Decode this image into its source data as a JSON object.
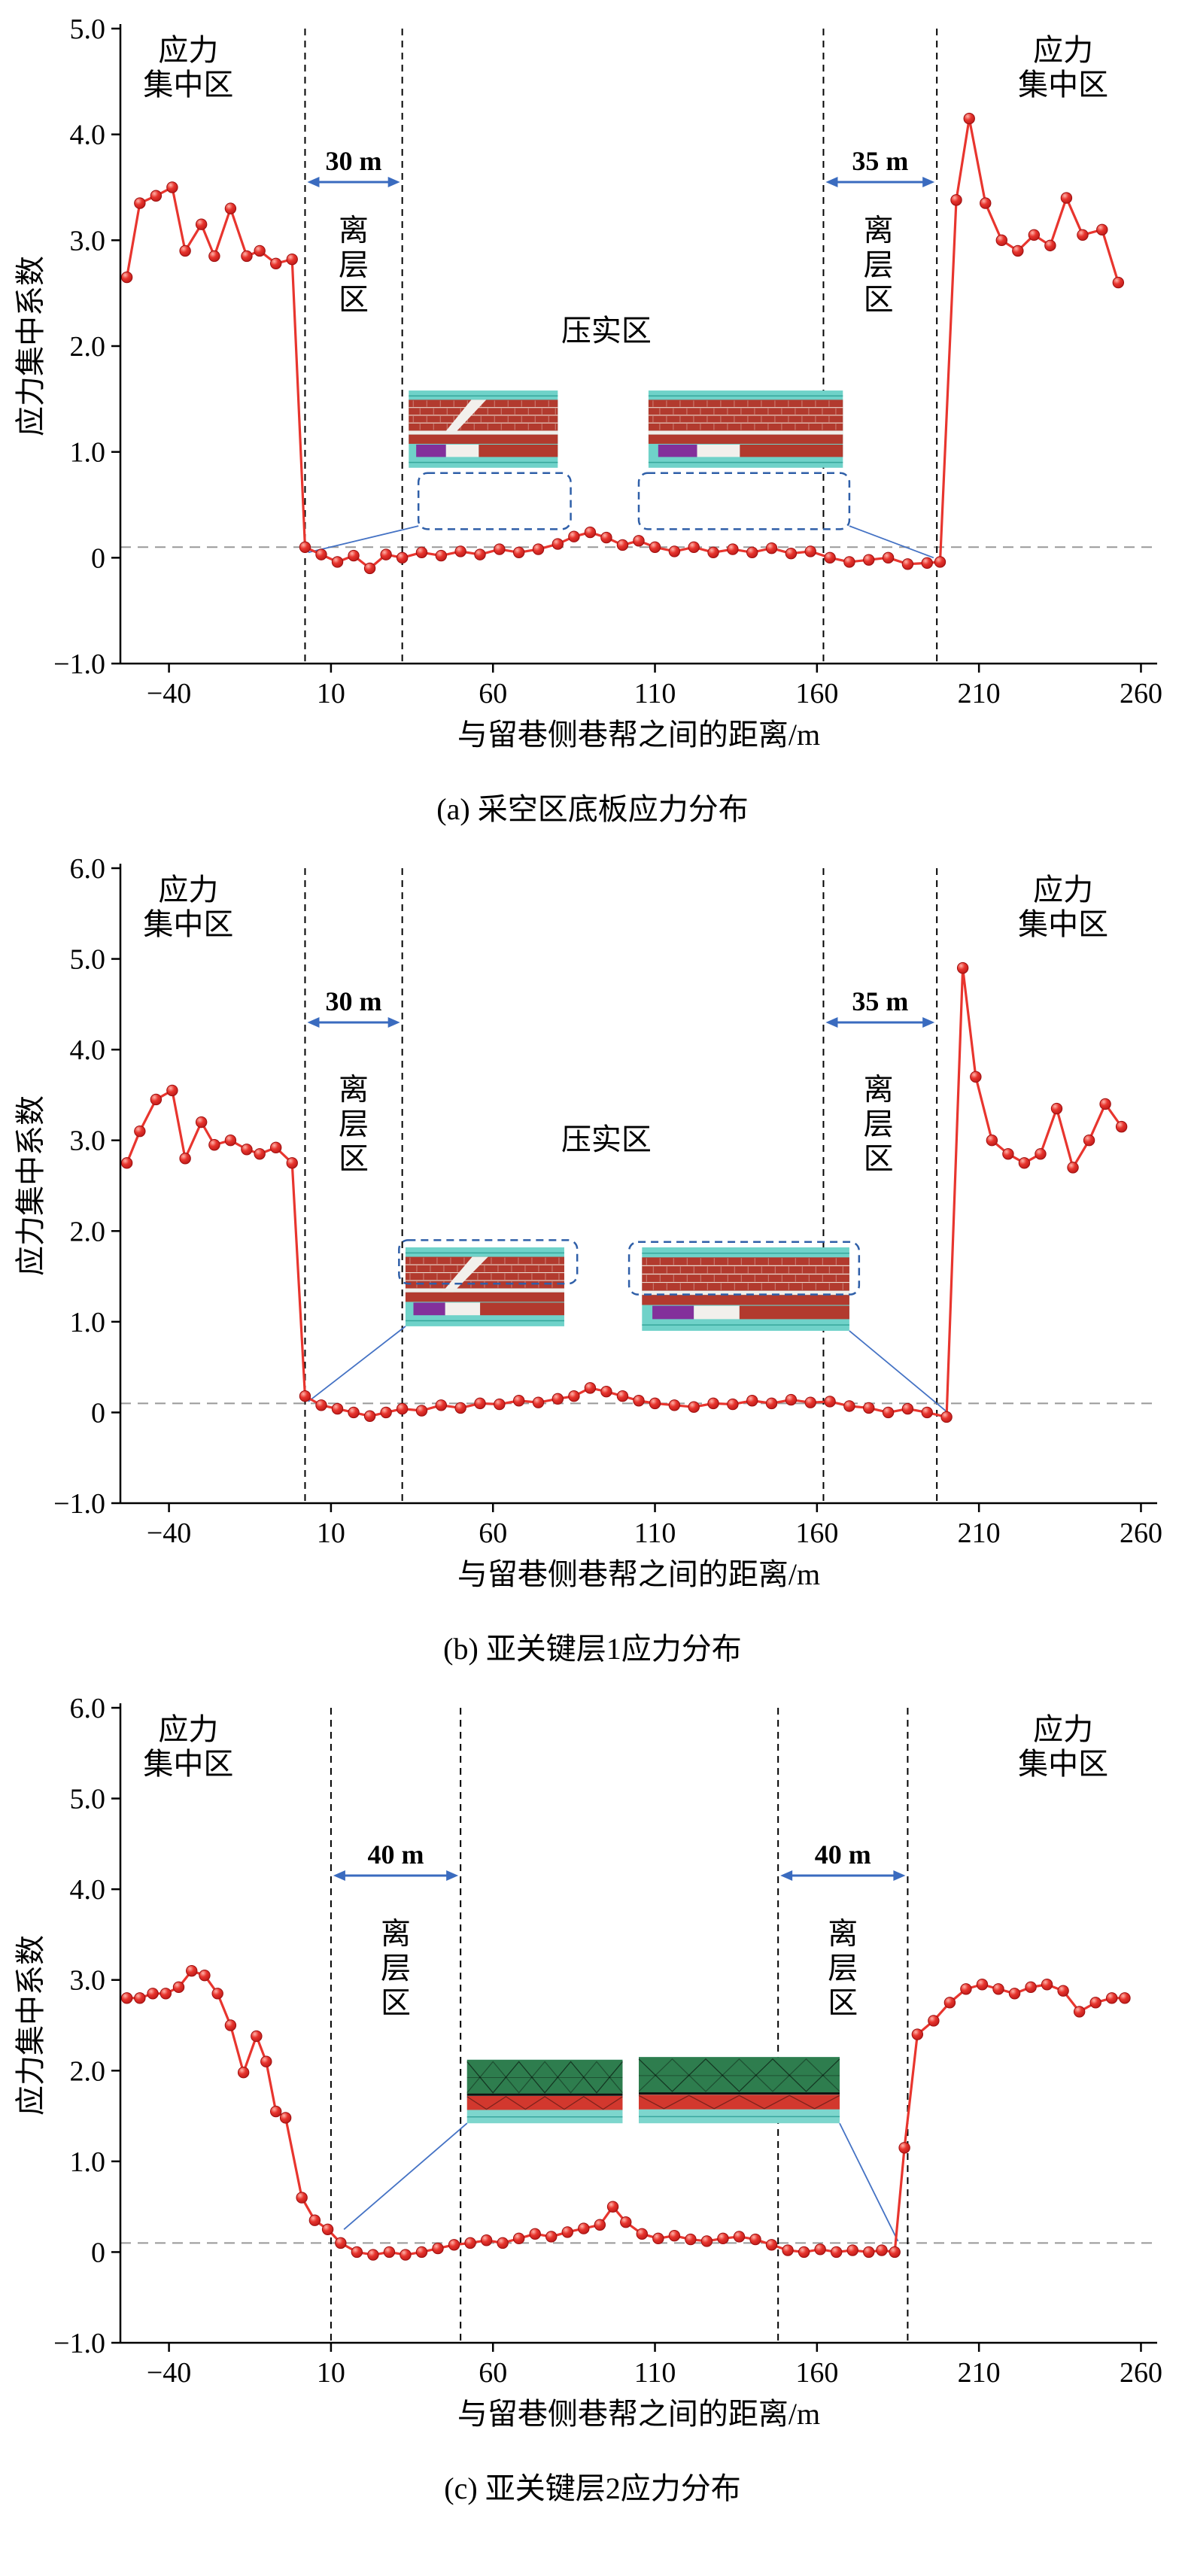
{
  "figure": {
    "background": "#ffffff"
  },
  "colors": {
    "curve": "#e8352e",
    "marker_stroke": "#9e0f0f",
    "axis": "#000000",
    "boundary_dash": "#000000",
    "ref_dash": "#999999",
    "arrow": "#3a6bbf",
    "span_label": "#e8352e",
    "link_line": "#4472c4",
    "select_rect": "#2f5fa8"
  },
  "chart_data": [
    {
      "id": "a",
      "type": "line",
      "caption": "(a) 采空区底板应力分布",
      "xlabel": "与留巷侧巷帮之间的距离/m",
      "ylabel": "应力集中系数",
      "xlim": [
        -55,
        265
      ],
      "ylim": [
        -1,
        5
      ],
      "xticks": [
        -40,
        10,
        60,
        110,
        160,
        210,
        260
      ],
      "yticks": [
        5,
        4,
        3,
        2,
        1,
        0,
        -1
      ],
      "ref_line_y": 0.1,
      "boundaries": [
        2,
        32,
        162,
        197
      ],
      "zone_labels": {
        "left": {
          "lines": [
            "应力",
            "集中区"
          ],
          "x": -34,
          "y": 4.7
        },
        "right": {
          "lines": [
            "应力",
            "集中区"
          ],
          "x": 236,
          "y": 4.7
        }
      },
      "separation_labels": [
        {
          "chars": [
            "离",
            "层",
            "区"
          ],
          "x": 17,
          "y": 3.0
        },
        {
          "chars": [
            "离",
            "层",
            "区"
          ],
          "x": 179,
          "y": 3.0
        }
      ],
      "compaction_label": {
        "text": "压实区",
        "x": 95,
        "y": 2.05
      },
      "spans": [
        {
          "label": "30 m",
          "x1": 2,
          "x2": 32,
          "y": 3.55
        },
        {
          "label": "35 m",
          "x1": 162,
          "x2": 197,
          "y": 3.55
        }
      ],
      "insets": [
        {
          "type": "strata-ab",
          "x1": 34,
          "x2": 80,
          "y1": 0.85,
          "y2": 1.58,
          "wedge": true
        },
        {
          "type": "strata-ab",
          "x1": 108,
          "x2": 168,
          "y1": 0.85,
          "y2": 1.58,
          "wedge": false
        }
      ],
      "select_rects": [
        {
          "x1": 37,
          "x2": 84,
          "y1": 0.27,
          "y2": 0.8
        },
        {
          "x1": 105,
          "x2": 170,
          "y1": 0.27,
          "y2": 0.8
        }
      ],
      "links": [
        {
          "x1": 37,
          "y1": 0.3,
          "x2": 3,
          "y2": 0.05
        },
        {
          "x1": 170,
          "y1": 0.3,
          "x2": 196,
          "y2": 0.0
        }
      ],
      "series": {
        "name": "应力集中系数",
        "points": [
          [
            -53,
            2.65
          ],
          [
            -49,
            3.35
          ],
          [
            -44,
            3.42
          ],
          [
            -39,
            3.5
          ],
          [
            -35,
            2.9
          ],
          [
            -30,
            3.15
          ],
          [
            -26,
            2.85
          ],
          [
            -21,
            3.3
          ],
          [
            -16,
            2.85
          ],
          [
            -12,
            2.9
          ],
          [
            -7,
            2.78
          ],
          [
            -2,
            2.82
          ],
          [
            2,
            0.1
          ],
          [
            7,
            0.03
          ],
          [
            12,
            -0.04
          ],
          [
            17,
            0.02
          ],
          [
            22,
            -0.1
          ],
          [
            27,
            0.03
          ],
          [
            32,
            0.0
          ],
          [
            38,
            0.05
          ],
          [
            44,
            0.02
          ],
          [
            50,
            0.06
          ],
          [
            56,
            0.03
          ],
          [
            62,
            0.08
          ],
          [
            68,
            0.05
          ],
          [
            74,
            0.08
          ],
          [
            80,
            0.13
          ],
          [
            85,
            0.2
          ],
          [
            90,
            0.24
          ],
          [
            95,
            0.19
          ],
          [
            100,
            0.12
          ],
          [
            105,
            0.16
          ],
          [
            110,
            0.1
          ],
          [
            116,
            0.06
          ],
          [
            122,
            0.1
          ],
          [
            128,
            0.05
          ],
          [
            134,
            0.08
          ],
          [
            140,
            0.05
          ],
          [
            146,
            0.09
          ],
          [
            152,
            0.04
          ],
          [
            158,
            0.06
          ],
          [
            164,
            0.0
          ],
          [
            170,
            -0.04
          ],
          [
            176,
            -0.02
          ],
          [
            182,
            0.0
          ],
          [
            188,
            -0.06
          ],
          [
            194,
            -0.05
          ],
          [
            198,
            -0.04
          ],
          [
            203,
            3.38
          ],
          [
            207,
            4.15
          ],
          [
            212,
            3.35
          ],
          [
            217,
            3.0
          ],
          [
            222,
            2.9
          ],
          [
            227,
            3.05
          ],
          [
            232,
            2.95
          ],
          [
            237,
            3.4
          ],
          [
            242,
            3.05
          ],
          [
            248,
            3.1
          ],
          [
            253,
            2.6
          ]
        ]
      }
    },
    {
      "id": "b",
      "type": "line",
      "caption": "(b) 亚关键层1应力分布",
      "xlabel": "与留巷侧巷帮之间的距离/m",
      "ylabel": "应力集中系数",
      "xlim": [
        -55,
        265
      ],
      "ylim": [
        -1,
        6
      ],
      "xticks": [
        -40,
        10,
        60,
        110,
        160,
        210,
        260
      ],
      "yticks": [
        6,
        5,
        4,
        3,
        2,
        1,
        0,
        -1
      ],
      "ref_line_y": 0.1,
      "boundaries": [
        2,
        32,
        162,
        197
      ],
      "zone_labels": {
        "left": {
          "lines": [
            "应力",
            "集中区"
          ],
          "x": -34,
          "y": 5.65
        },
        "right": {
          "lines": [
            "应力",
            "集中区"
          ],
          "x": 236,
          "y": 5.65
        }
      },
      "separation_labels": [
        {
          "chars": [
            "离",
            "层",
            "区"
          ],
          "x": 17,
          "y": 3.45
        },
        {
          "chars": [
            "离",
            "层",
            "区"
          ],
          "x": 179,
          "y": 3.45
        }
      ],
      "compaction_label": {
        "text": "压实区",
        "x": 95,
        "y": 2.9
      },
      "spans": [
        {
          "label": "30 m",
          "x1": 2,
          "x2": 32,
          "y": 4.3
        },
        {
          "label": "35 m",
          "x1": 162,
          "x2": 197,
          "y": 4.3
        }
      ],
      "insets": [
        {
          "type": "strata-ab",
          "x1": 33,
          "x2": 82,
          "y1": 0.95,
          "y2": 1.82,
          "wedge": true
        },
        {
          "type": "strata-ab",
          "x1": 106,
          "x2": 170,
          "y1": 0.9,
          "y2": 1.82,
          "wedge": false
        }
      ],
      "select_rects": [
        {
          "x1": 31,
          "x2": 86,
          "y1": 1.42,
          "y2": 1.9
        },
        {
          "x1": 102,
          "x2": 173,
          "y1": 1.3,
          "y2": 1.88
        }
      ],
      "links": [
        {
          "x1": 33,
          "y1": 0.95,
          "x2": 3,
          "y2": 0.12
        },
        {
          "x1": 170,
          "y1": 0.9,
          "x2": 201,
          "y2": -0.02
        }
      ],
      "series": {
        "name": "应力集中系数",
        "points": [
          [
            -53,
            2.75
          ],
          [
            -49,
            3.1
          ],
          [
            -44,
            3.45
          ],
          [
            -39,
            3.55
          ],
          [
            -35,
            2.8
          ],
          [
            -30,
            3.2
          ],
          [
            -26,
            2.95
          ],
          [
            -21,
            3.0
          ],
          [
            -16,
            2.9
          ],
          [
            -12,
            2.85
          ],
          [
            -7,
            2.92
          ],
          [
            -2,
            2.75
          ],
          [
            2,
            0.18
          ],
          [
            7,
            0.08
          ],
          [
            12,
            0.04
          ],
          [
            17,
            0.0
          ],
          [
            22,
            -0.04
          ],
          [
            27,
            0.0
          ],
          [
            32,
            0.04
          ],
          [
            38,
            0.02
          ],
          [
            44,
            0.08
          ],
          [
            50,
            0.05
          ],
          [
            56,
            0.1
          ],
          [
            62,
            0.09
          ],
          [
            68,
            0.13
          ],
          [
            74,
            0.11
          ],
          [
            80,
            0.15
          ],
          [
            85,
            0.18
          ],
          [
            90,
            0.27
          ],
          [
            95,
            0.23
          ],
          [
            100,
            0.18
          ],
          [
            105,
            0.13
          ],
          [
            110,
            0.1
          ],
          [
            116,
            0.08
          ],
          [
            122,
            0.06
          ],
          [
            128,
            0.1
          ],
          [
            134,
            0.09
          ],
          [
            140,
            0.13
          ],
          [
            146,
            0.1
          ],
          [
            152,
            0.14
          ],
          [
            158,
            0.11
          ],
          [
            164,
            0.12
          ],
          [
            170,
            0.07
          ],
          [
            176,
            0.05
          ],
          [
            182,
            0.0
          ],
          [
            188,
            0.04
          ],
          [
            194,
            0.0
          ],
          [
            200,
            -0.05
          ],
          [
            205,
            4.9
          ],
          [
            209,
            3.7
          ],
          [
            214,
            3.0
          ],
          [
            219,
            2.85
          ],
          [
            224,
            2.75
          ],
          [
            229,
            2.85
          ],
          [
            234,
            3.35
          ],
          [
            239,
            2.7
          ],
          [
            244,
            3.0
          ],
          [
            249,
            3.4
          ],
          [
            254,
            3.15
          ]
        ]
      }
    },
    {
      "id": "c",
      "type": "line",
      "caption": "(c) 亚关键层2应力分布",
      "xlabel": "与留巷侧巷帮之间的距离/m",
      "ylabel": "应力集中系数",
      "xlim": [
        -55,
        265
      ],
      "ylim": [
        -1,
        6
      ],
      "xticks": [
        -40,
        10,
        60,
        110,
        160,
        210,
        260
      ],
      "yticks": [
        6,
        5,
        4,
        3,
        2,
        1,
        0,
        -1
      ],
      "ref_line_y": 0.1,
      "boundaries": [
        10,
        50,
        148,
        188
      ],
      "zone_labels": {
        "left": {
          "lines": [
            "应力",
            "集中区"
          ],
          "x": -34,
          "y": 5.65
        },
        "right": {
          "lines": [
            "应力",
            "集中区"
          ],
          "x": 236,
          "y": 5.65
        }
      },
      "separation_labels": [
        {
          "chars": [
            "离",
            "层",
            "区"
          ],
          "x": 30,
          "y": 3.4
        },
        {
          "chars": [
            "离",
            "层",
            "区"
          ],
          "x": 168,
          "y": 3.4
        }
      ],
      "compaction_label": null,
      "spans": [
        {
          "label": "40 m",
          "x1": 10,
          "x2": 50,
          "y": 4.15
        },
        {
          "label": "40 m",
          "x1": 148,
          "x2": 188,
          "y": 4.15
        }
      ],
      "insets": [
        {
          "type": "strata-c",
          "x1": 52,
          "x2": 100,
          "y1": 1.42,
          "y2": 2.12,
          "wedge": false
        },
        {
          "type": "strata-c",
          "x1": 105,
          "x2": 167,
          "y1": 1.42,
          "y2": 2.15,
          "wedge": false
        }
      ],
      "select_rects": [],
      "links": [
        {
          "x1": 52,
          "y1": 1.42,
          "x2": 14,
          "y2": 0.25
        },
        {
          "x1": 167,
          "y1": 1.42,
          "x2": 185,
          "y2": 0.12
        }
      ],
      "series": {
        "name": "应力集中系数",
        "points": [
          [
            -53,
            2.8
          ],
          [
            -49,
            2.8
          ],
          [
            -45,
            2.85
          ],
          [
            -41,
            2.85
          ],
          [
            -37,
            2.92
          ],
          [
            -33,
            3.1
          ],
          [
            -29,
            3.05
          ],
          [
            -25,
            2.85
          ],
          [
            -21,
            2.5
          ],
          [
            -17,
            1.98
          ],
          [
            -13,
            2.38
          ],
          [
            -10,
            2.1
          ],
          [
            -7,
            1.55
          ],
          [
            -4,
            1.48
          ],
          [
            1,
            0.6
          ],
          [
            5,
            0.35
          ],
          [
            9,
            0.25
          ],
          [
            13,
            0.1
          ],
          [
            18,
            0.0
          ],
          [
            23,
            -0.03
          ],
          [
            28,
            0.0
          ],
          [
            33,
            -0.03
          ],
          [
            38,
            0.0
          ],
          [
            43,
            0.04
          ],
          [
            48,
            0.08
          ],
          [
            53,
            0.1
          ],
          [
            58,
            0.13
          ],
          [
            63,
            0.1
          ],
          [
            68,
            0.15
          ],
          [
            73,
            0.2
          ],
          [
            78,
            0.17
          ],
          [
            83,
            0.22
          ],
          [
            88,
            0.26
          ],
          [
            93,
            0.3
          ],
          [
            97,
            0.5
          ],
          [
            101,
            0.33
          ],
          [
            106,
            0.2
          ],
          [
            111,
            0.15
          ],
          [
            116,
            0.18
          ],
          [
            121,
            0.14
          ],
          [
            126,
            0.12
          ],
          [
            131,
            0.15
          ],
          [
            136,
            0.17
          ],
          [
            141,
            0.14
          ],
          [
            146,
            0.08
          ],
          [
            151,
            0.02
          ],
          [
            156,
            0.0
          ],
          [
            161,
            0.03
          ],
          [
            166,
            0.0
          ],
          [
            171,
            0.02
          ],
          [
            176,
            0.0
          ],
          [
            180,
            0.02
          ],
          [
            184,
            0.0
          ],
          [
            187,
            1.15
          ],
          [
            191,
            2.4
          ],
          [
            196,
            2.55
          ],
          [
            201,
            2.75
          ],
          [
            206,
            2.9
          ],
          [
            211,
            2.95
          ],
          [
            216,
            2.9
          ],
          [
            221,
            2.85
          ],
          [
            226,
            2.92
          ],
          [
            231,
            2.95
          ],
          [
            236,
            2.88
          ],
          [
            241,
            2.65
          ],
          [
            246,
            2.75
          ],
          [
            251,
            2.8
          ],
          [
            255,
            2.8
          ]
        ]
      }
    }
  ]
}
